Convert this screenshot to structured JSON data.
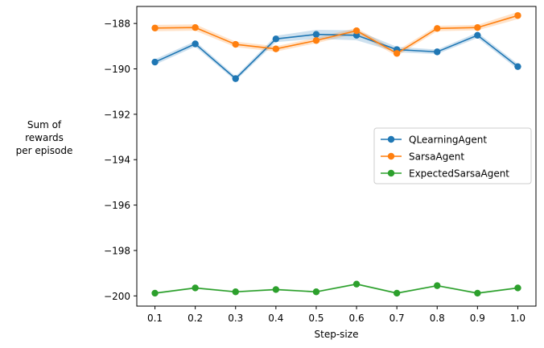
{
  "chart_data": {
    "type": "line",
    "title": "",
    "xlabel": "Step-size",
    "ylabel_lines": [
      "Sum of",
      "rewards",
      "per episode"
    ],
    "x": [
      0.1,
      0.2,
      0.3,
      0.4,
      0.5,
      0.6,
      0.7,
      0.8,
      0.9,
      1.0
    ],
    "x_tick_labels": [
      "0.1",
      "0.2",
      "0.3",
      "0.4",
      "0.5",
      "0.6",
      "0.7",
      "0.8",
      "0.9",
      "1.0"
    ],
    "xlim": [
      0.055,
      1.045
    ],
    "ylim": [
      -200.45,
      -187.25
    ],
    "y_ticks": [
      -200,
      -198,
      -196,
      -194,
      -192,
      -190,
      -188
    ],
    "y_tick_labels": [
      "−200",
      "−198",
      "−196",
      "−194",
      "−192",
      "−190",
      "−188"
    ],
    "grid": false,
    "legend_position": "center-right",
    "series": [
      {
        "name": "QLearningAgent",
        "color": "#1f77b4",
        "values": [
          -189.7,
          -188.9,
          -190.43,
          -188.68,
          -188.48,
          -188.52,
          -189.15,
          -189.25,
          -188.52,
          -189.9
        ],
        "band_halfwidth": [
          0.12,
          0.12,
          0.1,
          0.14,
          0.2,
          0.22,
          0.12,
          0.1,
          0.12,
          0.12
        ]
      },
      {
        "name": "SarsaAgent",
        "color": "#ff7f0e",
        "values": [
          -188.2,
          -188.18,
          -188.92,
          -189.12,
          -188.75,
          -188.32,
          -189.32,
          -188.22,
          -188.18,
          -187.65
        ],
        "band_halfwidth": [
          0.14,
          0.14,
          0.12,
          0.12,
          0.12,
          0.12,
          0.12,
          0.12,
          0.12,
          0.16
        ]
      },
      {
        "name": "ExpectedSarsaAgent",
        "color": "#2ca02c",
        "values": [
          -199.88,
          -199.65,
          -199.82,
          -199.72,
          -199.82,
          -199.48,
          -199.88,
          -199.55,
          -199.88,
          -199.65
        ],
        "band_halfwidth": [
          0.04,
          0.04,
          0.04,
          0.04,
          0.04,
          0.04,
          0.04,
          0.04,
          0.04,
          0.04
        ]
      }
    ]
  }
}
